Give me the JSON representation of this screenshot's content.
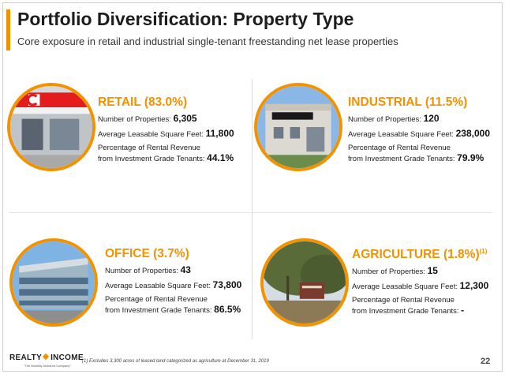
{
  "title": "Portfolio Diversification: Property Type",
  "subtitle": "Core exposure in retail and industrial single-tenant freestanding net lease properties",
  "colors": {
    "accent": "#f39200",
    "text": "#222222"
  },
  "segments": {
    "retail": {
      "heading": "RETAIL (83.0%)",
      "properties_label": "Number of Properties: ",
      "properties_value": "6,305",
      "sqft_label": "Average Leasable Square Feet: ",
      "sqft_value": "11,800",
      "revenue_label_1": "Percentage of Rental Revenue",
      "revenue_label_2": "from Investment Grade Tenants: ",
      "revenue_value": "44.1%",
      "image_icon": "convenience-store-photo"
    },
    "industrial": {
      "heading": "INDUSTRIAL (11.5%)",
      "properties_label": "Number of Properties: ",
      "properties_value": "120",
      "sqft_label": "Average Leasable Square Feet: ",
      "sqft_value": "238,000",
      "revenue_label_1": "Percentage of Rental Revenue",
      "revenue_label_2": "from Investment Grade Tenants: ",
      "revenue_value": "79.9%",
      "image_icon": "caterpillar-building-photo"
    },
    "office": {
      "heading": "OFFICE (3.7%)",
      "properties_label": "Number of Properties: ",
      "properties_value": "43",
      "sqft_label": "Average Leasable Square Feet: ",
      "sqft_value": "73,800",
      "revenue_label_1": "Percentage of Rental Revenue",
      "revenue_label_2": "from Investment Grade Tenants: ",
      "revenue_value": "86.5%",
      "image_icon": "office-building-photo"
    },
    "agriculture": {
      "heading": "AGRICULTURE (1.8%)",
      "heading_sup": "(1)",
      "properties_label": "Number of Properties: ",
      "properties_value": "15",
      "sqft_label": "Average Leasable Square Feet: ",
      "sqft_value": "12,300",
      "revenue_label_1": "Percentage of Rental Revenue",
      "revenue_label_2": "from Investment Grade Tenants: ",
      "revenue_value": "-",
      "image_icon": "vineyard-sign-photo"
    }
  },
  "logo": {
    "name_left": "REALTY",
    "name_right": "INCOME",
    "tagline": "\"The Monthly Dividend Company\""
  },
  "footnote": "(1) Excludes 3,300 acres of leased land categorized as agriculture at December 31, 2019",
  "page_number": "22"
}
